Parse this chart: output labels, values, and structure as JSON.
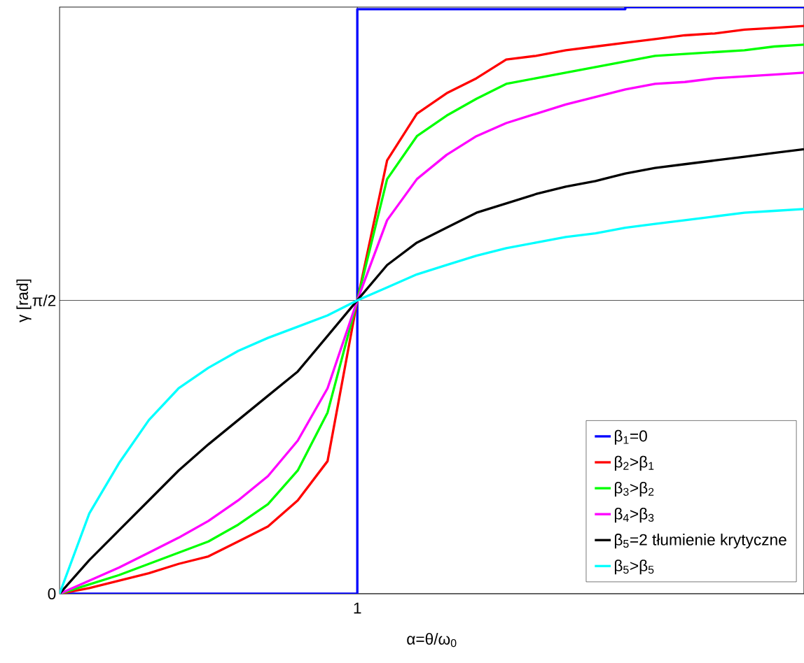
{
  "chart_data": {
    "type": "line",
    "xlabel": "α=θ/ω$_{0}$",
    "ylabel": "γ [rad]",
    "categories": [
      null,
      null,
      null,
      null,
      null,
      null,
      null,
      null,
      null,
      null,
      "1",
      null,
      null,
      null,
      null,
      null,
      null,
      null,
      null,
      null,
      null,
      null,
      null,
      null,
      null,
      null
    ],
    "ylim": [
      0,
      3.1416
    ],
    "yticks": [
      0,
      {
        "value": 1.5708,
        "label": "π/2"
      }
    ],
    "grid": true,
    "legend": "bottom right",
    "marker": "none",
    "line_style": "solid",
    "series": [
      {
        "name": "β$_{1}$=0",
        "type": "step",
        "color": "#0000ff",
        "values": [
          0,
          0,
          0,
          0,
          0,
          0,
          0,
          0,
          0,
          0,
          3.13,
          3.13,
          3.13,
          3.13,
          3.13,
          3.13,
          3.13,
          3.13,
          3.13,
          3.14,
          3.14,
          3.14,
          3.14,
          3.14,
          3.14,
          3.14
        ]
      },
      {
        "name": "β$_{2}$>β$_{1}$",
        "color": "#ff0000",
        "values": [
          0,
          0.03,
          0.07,
          0.11,
          0.16,
          0.2,
          0.28,
          0.36,
          0.5,
          0.71,
          1.571,
          2.32,
          2.57,
          2.68,
          2.76,
          2.86,
          2.88,
          2.91,
          2.93,
          2.95,
          2.97,
          2.99,
          3.0,
          3.02,
          3.03,
          3.04
        ]
      },
      {
        "name": "β$_{3}$>β$_{2}$",
        "color": "#00ff00",
        "values": [
          0,
          0.05,
          0.1,
          0.16,
          0.22,
          0.28,
          0.37,
          0.48,
          0.66,
          0.97,
          1.571,
          2.22,
          2.45,
          2.56,
          2.65,
          2.73,
          2.76,
          2.79,
          2.82,
          2.85,
          2.88,
          2.89,
          2.9,
          2.91,
          2.93,
          2.94
        ]
      },
      {
        "name": "β$_{4}$>β$_{3}$",
        "color": "#ff00ff",
        "values": [
          0,
          0.07,
          0.14,
          0.22,
          0.3,
          0.39,
          0.5,
          0.63,
          0.82,
          1.1,
          1.571,
          2.0,
          2.22,
          2.35,
          2.45,
          2.52,
          2.57,
          2.62,
          2.66,
          2.7,
          2.73,
          2.74,
          2.76,
          2.77,
          2.78,
          2.79
        ]
      },
      {
        "name": "β$_{5}$=2 tłumienie krytyczne",
        "color": "#000000",
        "values": [
          0,
          0.18,
          0.34,
          0.5,
          0.66,
          0.8,
          0.93,
          1.06,
          1.19,
          1.38,
          1.571,
          1.76,
          1.88,
          1.96,
          2.04,
          2.09,
          2.14,
          2.18,
          2.21,
          2.25,
          2.28,
          2.3,
          2.32,
          2.34,
          2.36,
          2.38
        ]
      },
      {
        "name": "β$_{5}$>β$_{5}$",
        "color": "#00ffff",
        "values": [
          0,
          0.43,
          0.7,
          0.93,
          1.1,
          1.21,
          1.3,
          1.37,
          1.43,
          1.49,
          1.571,
          1.64,
          1.71,
          1.76,
          1.81,
          1.85,
          1.88,
          1.91,
          1.93,
          1.96,
          1.98,
          2.0,
          2.02,
          2.04,
          2.05,
          2.06
        ]
      }
    ]
  }
}
